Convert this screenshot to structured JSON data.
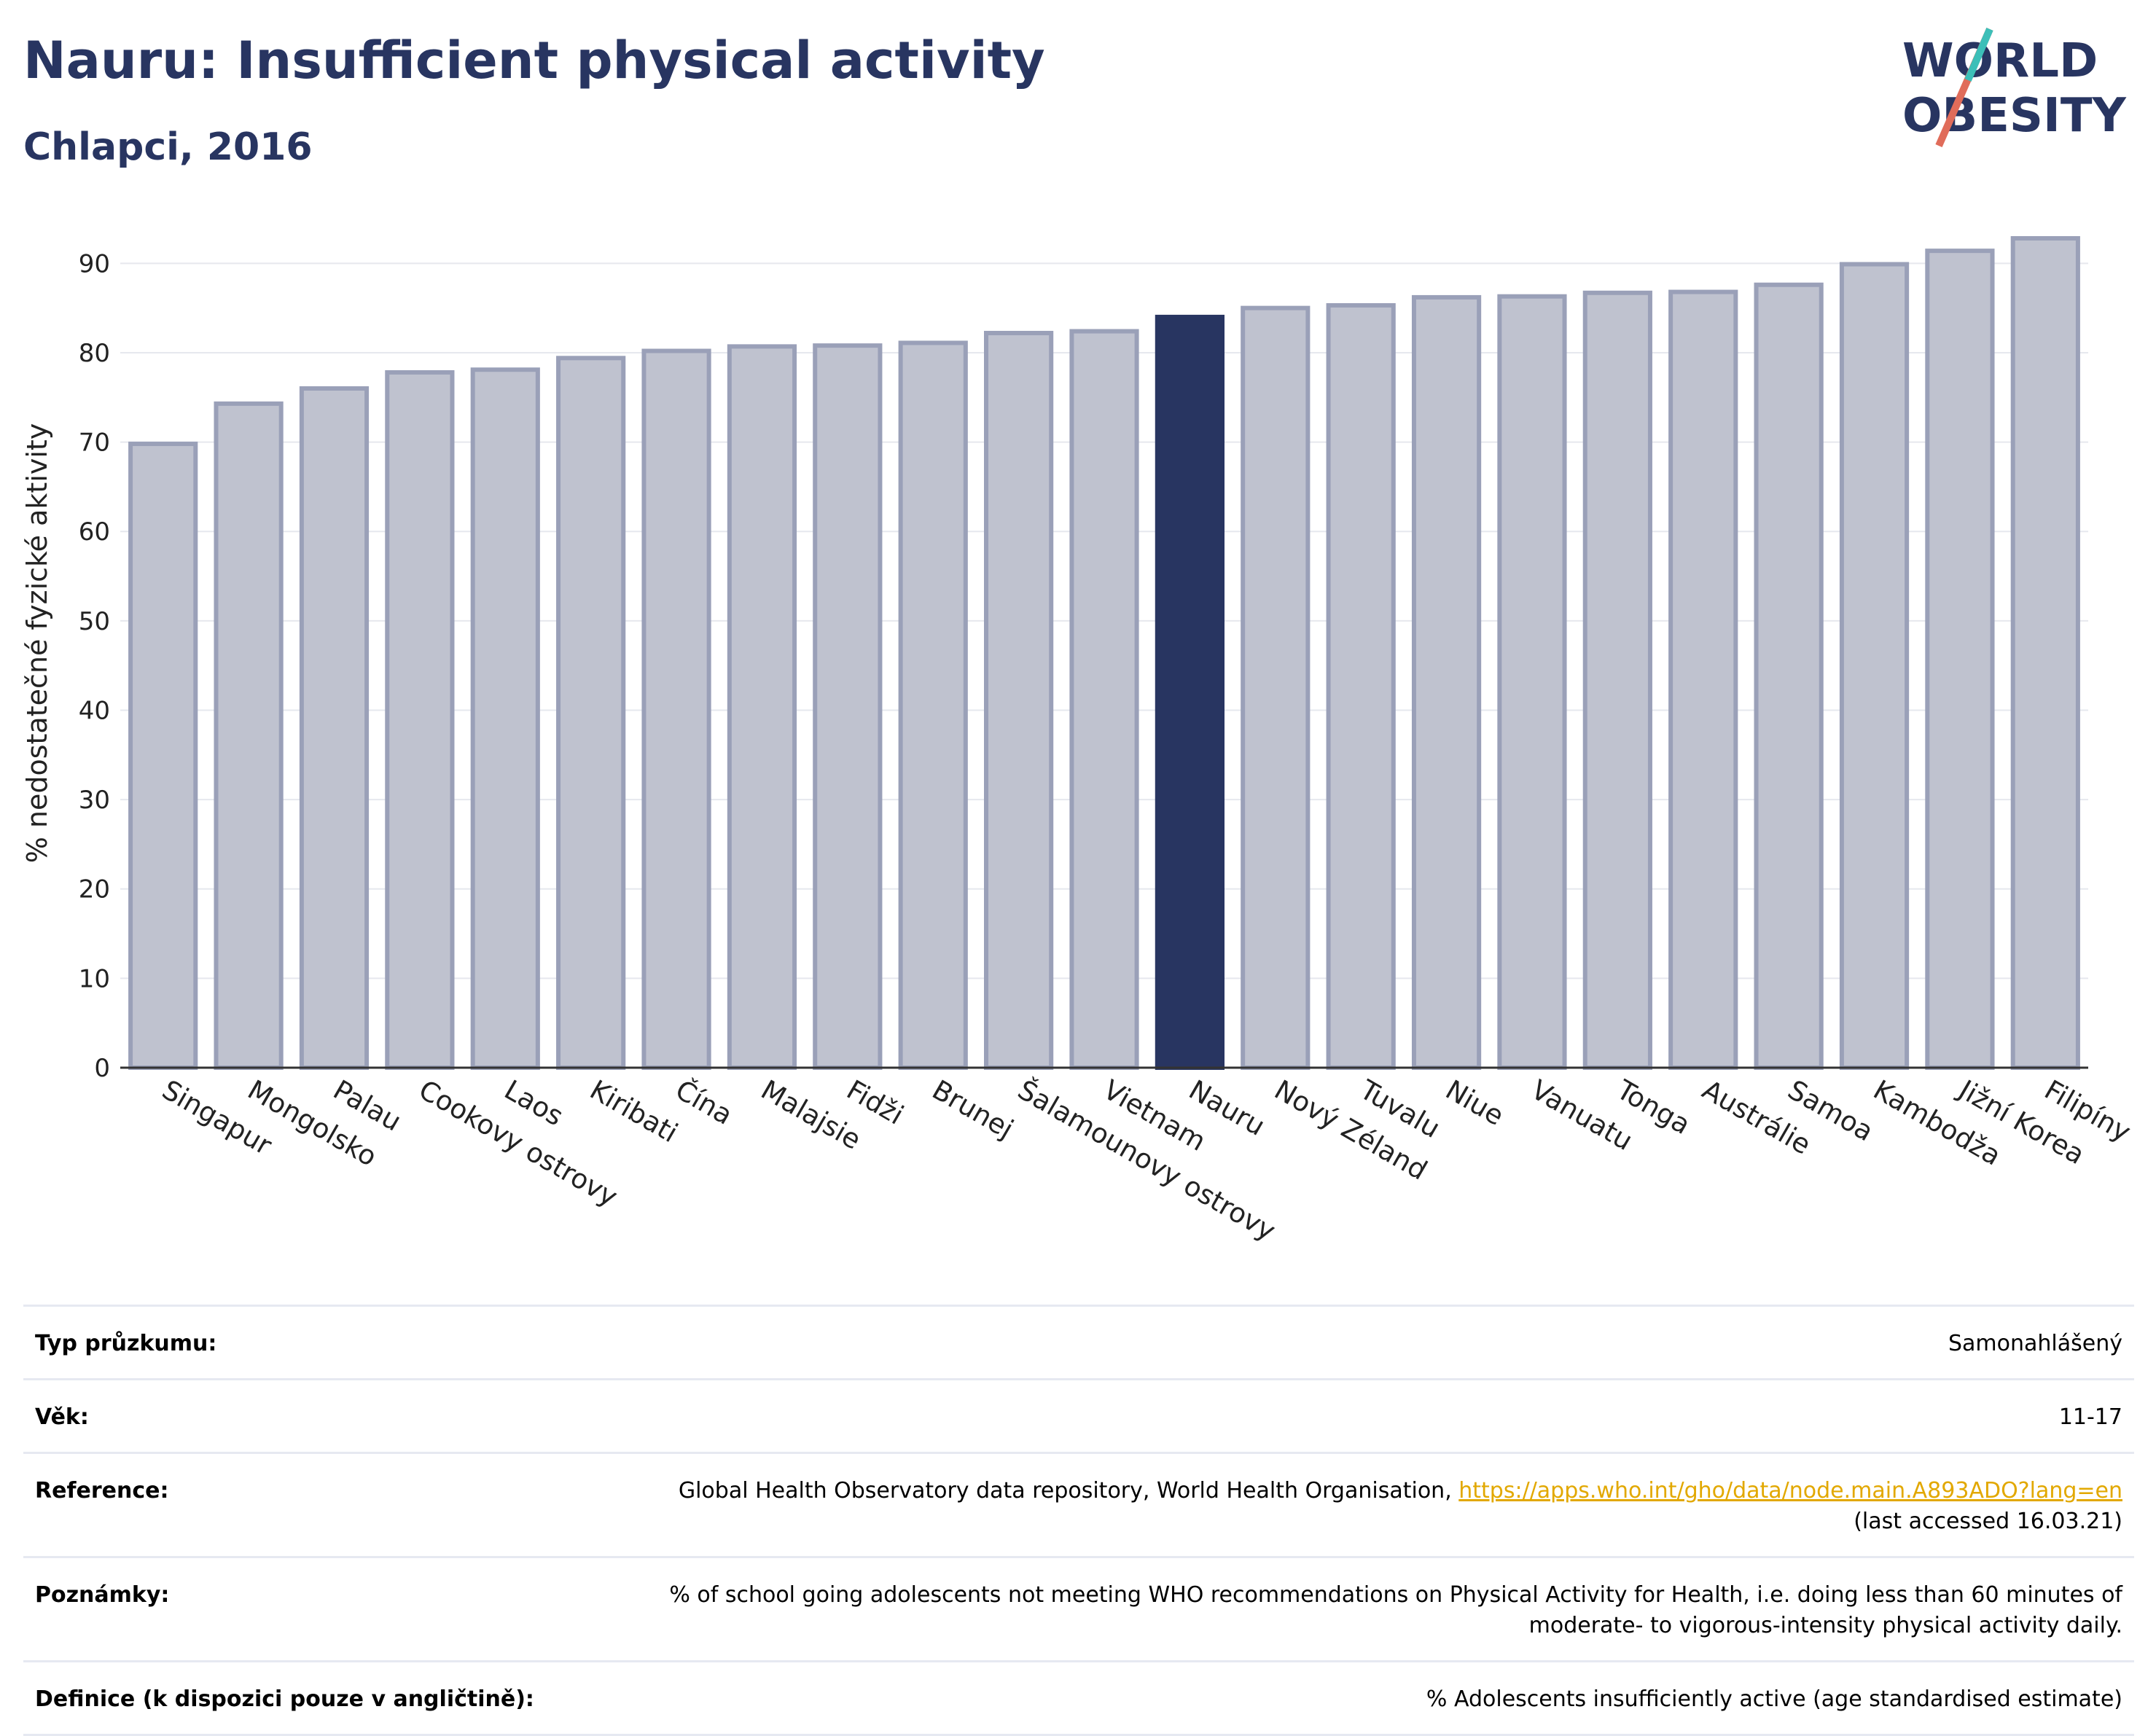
{
  "header": {
    "title": "Nauru: Insufficient physical activity",
    "subtitle": "Chlapci, 2016"
  },
  "logo": {
    "line1": "WORLD",
    "line2": "OBESITY"
  },
  "colors": {
    "title": "#283561",
    "bar_default": "#bfc2cf",
    "bar_border": "#9aa0b8",
    "bar_highlight": "#283561",
    "link": "#e2a800"
  },
  "chart_data": {
    "type": "bar",
    "ylabel": "% nedostatečné fyzické aktivity",
    "xlabel": "",
    "ylim": [
      0,
      95
    ],
    "yticks": [
      0,
      10,
      20,
      30,
      40,
      50,
      60,
      70,
      80,
      90
    ],
    "grid": true,
    "highlight": "Nauru",
    "categories": [
      "Singapur",
      "Mongolsko",
      "Palau",
      "Cookovy ostrovy",
      "Laos",
      "Kiribati",
      "Čína",
      "Malajsie",
      "Fidži",
      "Brunej",
      "Šalamounovy ostrovy",
      "Vietnam",
      "Nauru",
      "Nový Zéland",
      "Tuvalu",
      "Niue",
      "Vanuatu",
      "Tonga",
      "Austrálie",
      "Samoa",
      "Kambodža",
      "Jižní Korea",
      "Filipíny"
    ],
    "values": [
      69.8,
      74.3,
      76.0,
      77.8,
      78.1,
      79.4,
      80.2,
      80.7,
      80.8,
      81.1,
      82.2,
      82.4,
      84.0,
      85.0,
      85.3,
      86.2,
      86.3,
      86.7,
      86.8,
      87.6,
      89.9,
      91.4,
      92.8
    ]
  },
  "meta": [
    {
      "label": "Typ průzkumu:",
      "value": "Samonahlášený"
    },
    {
      "label": "Věk:",
      "value": "11-17"
    },
    {
      "label": "Reference:",
      "value": "Global Health Observatory data repository, World Health Organisation, ",
      "link": "https://apps.who.int/gho/data/node.main.A893ADO?lang=en",
      "value2": "(last accessed 16.03.21)"
    },
    {
      "label": "Poznámky:",
      "value": "% of school going adolescents not meeting WHO recommendations on Physical Activity for Health, i.e. doing less than 60 minutes of moderate- to vigorous-intensity physical activity daily."
    },
    {
      "label": "Definice (k dispozici pouze v angličtině):",
      "value": "% Adolescents insufficiently active (age standardised estimate)"
    }
  ]
}
